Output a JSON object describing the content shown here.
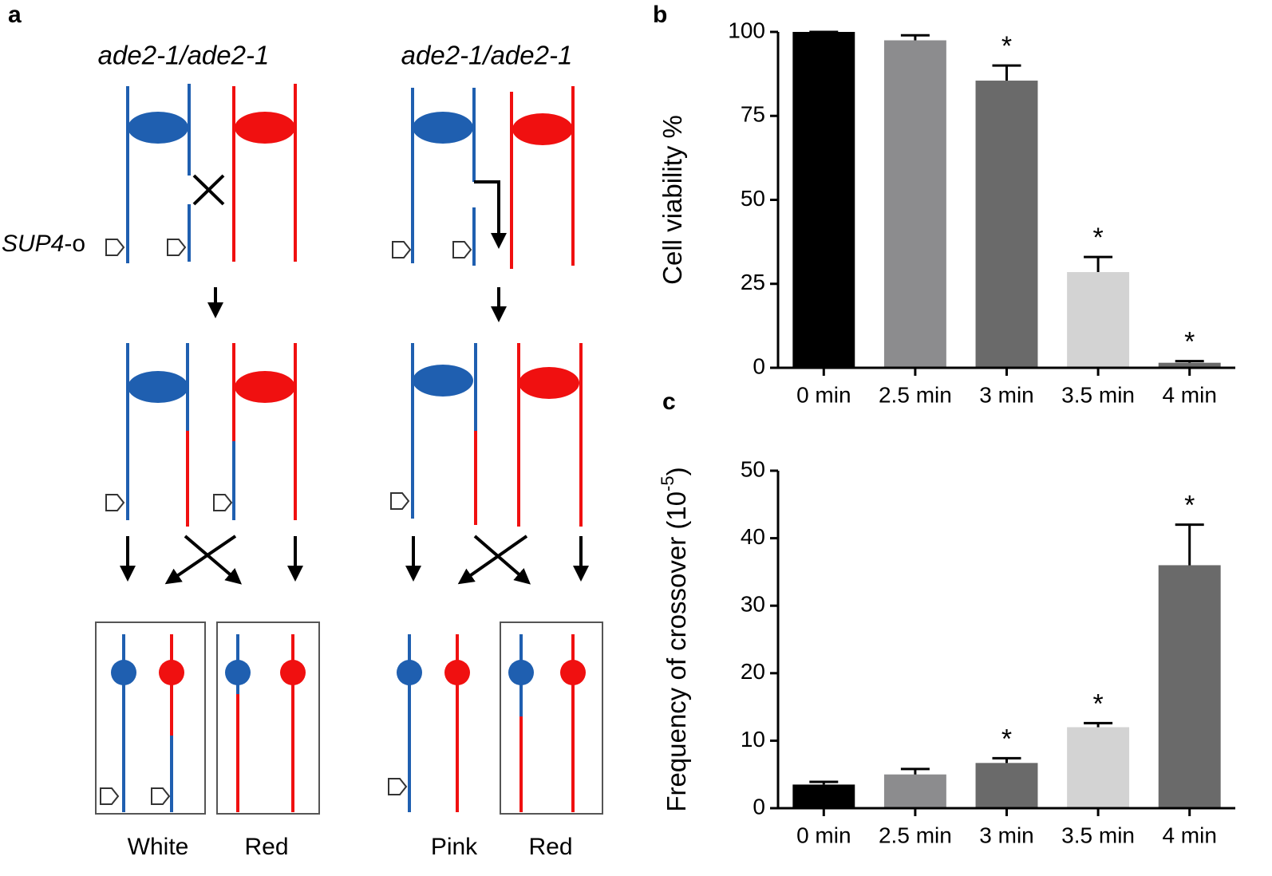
{
  "panel_labels": [
    "a",
    "b",
    "c"
  ],
  "diagram": {
    "titles": [
      "ade2-1/ade2-1",
      "ade2-1/ade2-1"
    ],
    "marker_label": {
      "gene": "SUP4",
      "suffix": "-o"
    },
    "outcomes": [
      "White",
      "Red",
      "Pink",
      "Red"
    ]
  },
  "chart_data": [
    {
      "type": "bar",
      "ylabel": "Cell viability  %",
      "categories": [
        "0 min",
        "2.5 min",
        "3 min",
        "3.5 min",
        "4 min"
      ],
      "values": [
        100,
        97.5,
        85.5,
        28.5,
        1.5
      ],
      "errors": [
        0,
        1.5,
        4.5,
        4.5,
        0.5
      ],
      "colors": [
        "#000000",
        "#8c8c8e",
        "#6a6a6a",
        "#d3d3d3",
        "#6a6a6a"
      ],
      "significance": [
        null,
        null,
        "*",
        "*",
        "*"
      ],
      "ylim": [
        0,
        100
      ],
      "yticks": [
        0,
        25,
        50,
        75,
        100
      ]
    },
    {
      "type": "bar",
      "ylabel": "Frequency of crossover (10",
      "ylabel_sup": "-5",
      "ylabel_end": ")",
      "categories": [
        "0 min",
        "2.5 min",
        "3 min",
        "3.5 min",
        "4 min"
      ],
      "values": [
        3.5,
        5,
        6.7,
        12,
        36
      ],
      "errors": [
        0.4,
        0.8,
        0.7,
        0.6,
        6
      ],
      "colors": [
        "#000000",
        "#8c8c8e",
        "#6a6a6a",
        "#d3d3d3",
        "#6a6a6a"
      ],
      "significance": [
        null,
        null,
        "*",
        "*",
        "*"
      ],
      "ylim": [
        0,
        50
      ],
      "yticks": [
        0,
        10,
        20,
        30,
        40,
        50
      ]
    }
  ]
}
